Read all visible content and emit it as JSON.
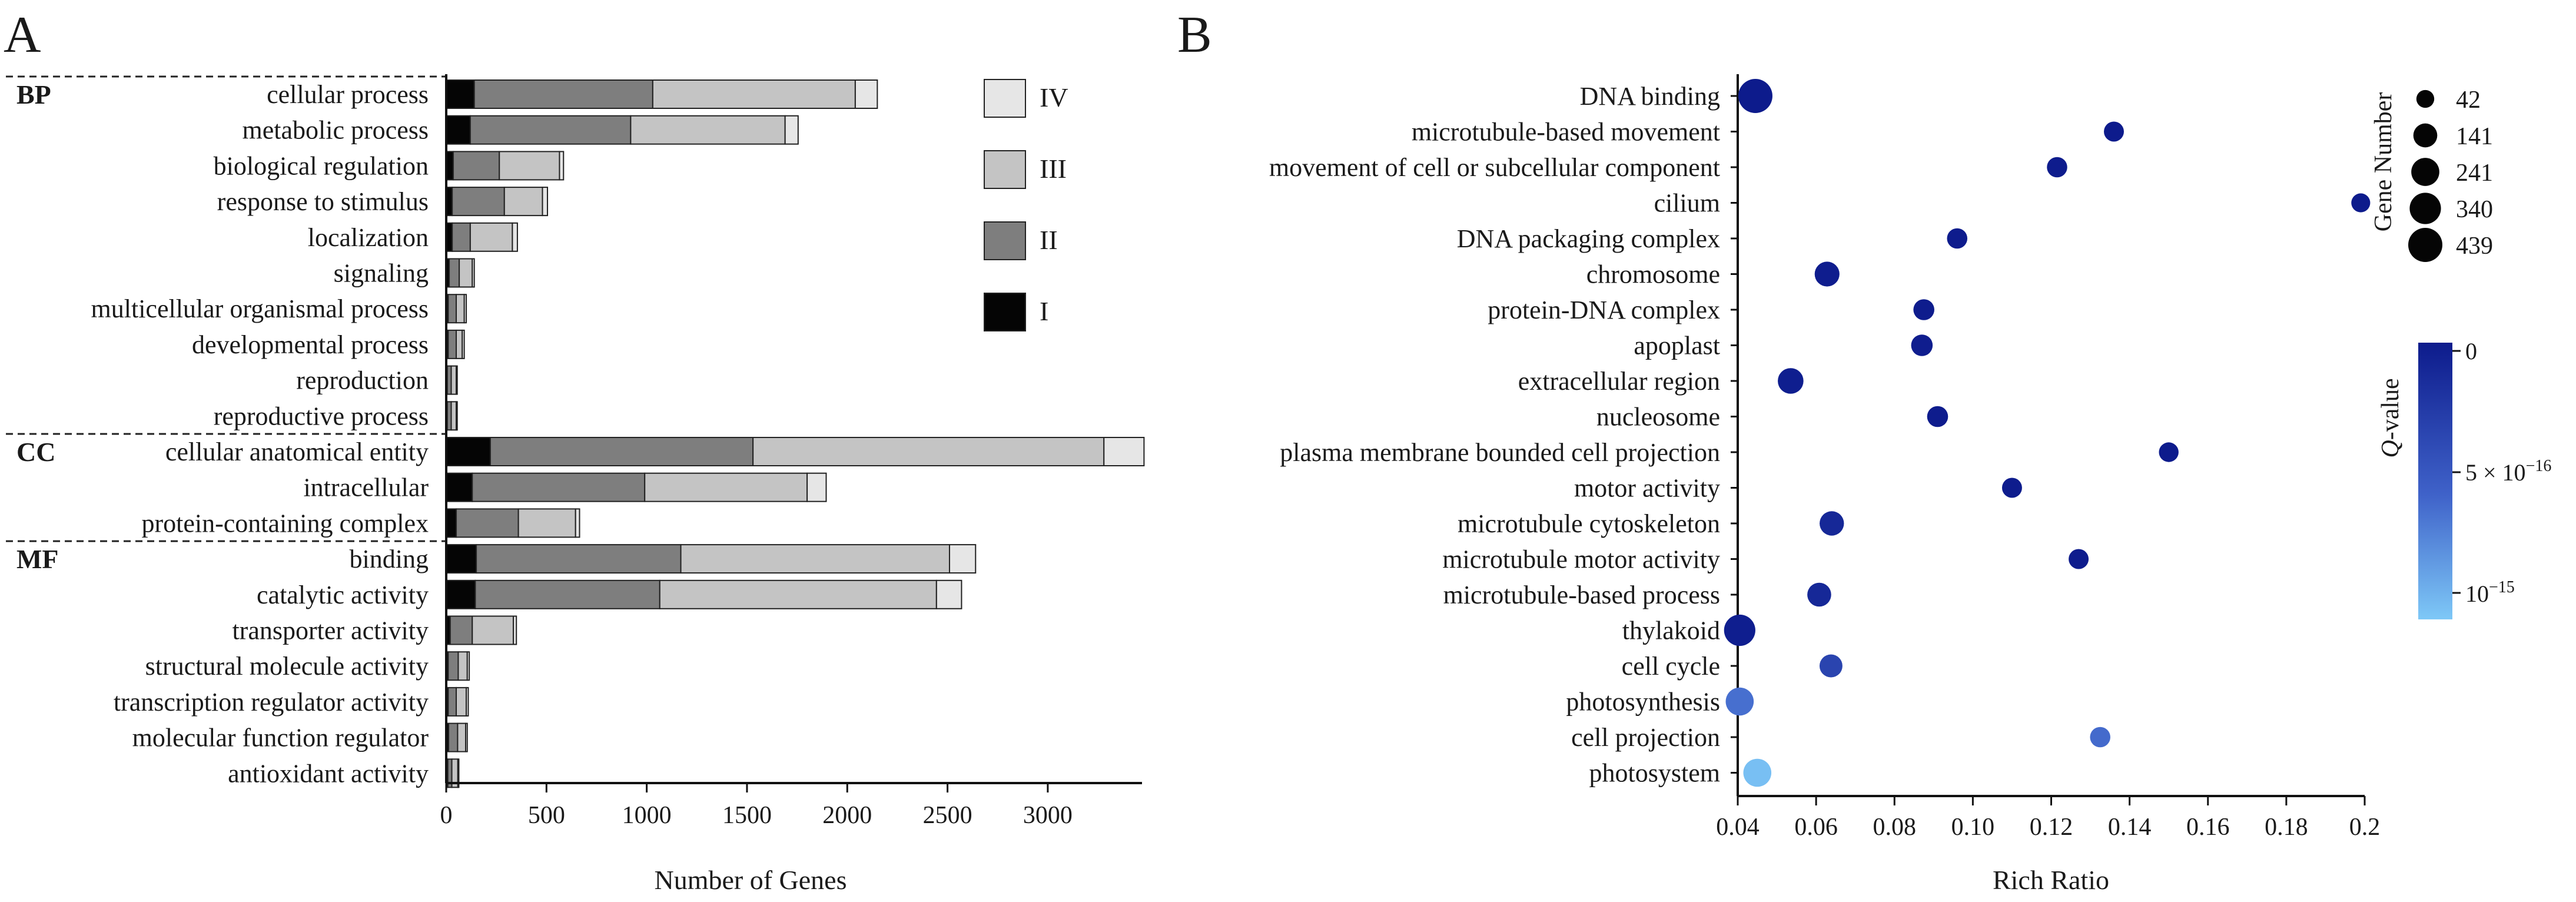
{
  "panel_a": {
    "label": "A",
    "xlabel": "Number of Genes",
    "xlim": [
      0,
      3470
    ],
    "xticks": [
      0,
      500,
      1000,
      1500,
      2000,
      2500,
      3000
    ],
    "legend": [
      {
        "label": "IV",
        "color": "#e6e6e6"
      },
      {
        "label": "III",
        "color": "#c4c4c4"
      },
      {
        "label": "II",
        "color": "#7e7e7e"
      },
      {
        "label": "I",
        "color": "#050505"
      }
    ],
    "groups": [
      {
        "label": "BP",
        "start": 0,
        "end": 9
      },
      {
        "label": "CC",
        "start": 10,
        "end": 12
      },
      {
        "label": "MF",
        "start": 13,
        "end": 19
      }
    ]
  },
  "panel_b": {
    "label": "B",
    "xlabel": "Rich Ratio",
    "xlim": [
      0.04,
      0.2
    ],
    "xticks": [
      "0.04",
      "0.06",
      "0.08",
      "0.10",
      "0.12",
      "0.14",
      "0.16",
      "0.18",
      "0.2"
    ],
    "size_legend_title": "Gene Number",
    "size_legend_values": [
      "42",
      "141",
      "241",
      "340",
      "439"
    ],
    "color_legend_title_italic": "Q",
    "color_legend_title_rest": "-value",
    "color_legend_ticks": [
      "0",
      "5 × 10",
      "−16",
      "10",
      "−15"
    ],
    "color_scale": [
      "#0d1b8c",
      "#7ec8f7"
    ]
  },
  "chart_data": [
    {
      "type": "bar",
      "stacked": true,
      "orientation": "horizontal",
      "title": "",
      "xlabel": "Number of Genes",
      "ylabel": "",
      "xlim": [
        0,
        3470
      ],
      "categories": [
        "cellular process",
        "metabolic process",
        "biological regulation",
        "response to stimulus",
        "localization",
        "signaling",
        "multicellular organismal process",
        "developmental process",
        "reproduction",
        "reproductive process",
        "cellular anatomical entity",
        "intracellular",
        "protein-containing complex",
        "binding",
        "catalytic activity",
        "transporter activity",
        "structural molecule activity",
        "transcription regulator activity",
        "molecular function regulator",
        "antioxidant activity"
      ],
      "groups": {
        "BP": [
          0,
          9
        ],
        "CC": [
          10,
          12
        ],
        "MF": [
          13,
          19
        ]
      },
      "series": [
        {
          "name": "I",
          "values": [
            140,
            120,
            35,
            30,
            30,
            15,
            10,
            10,
            5,
            5,
            220,
            130,
            50,
            150,
            145,
            20,
            10,
            10,
            12,
            8
          ]
        },
        {
          "name": "II",
          "values": [
            890,
            800,
            230,
            260,
            90,
            50,
            40,
            40,
            20,
            20,
            1310,
            860,
            310,
            1020,
            920,
            110,
            50,
            40,
            45,
            20
          ]
        },
        {
          "name": "III",
          "values": [
            1010,
            770,
            300,
            190,
            210,
            65,
            40,
            30,
            25,
            25,
            1750,
            810,
            285,
            1340,
            1380,
            205,
            45,
            50,
            40,
            30
          ]
        },
        {
          "name": "IV",
          "values": [
            110,
            65,
            20,
            25,
            25,
            10,
            10,
            10,
            5,
            5,
            200,
            95,
            20,
            130,
            125,
            15,
            10,
            10,
            8,
            5
          ]
        }
      ]
    },
    {
      "type": "scatter",
      "title": "",
      "xlabel": "Rich Ratio",
      "ylabel": "",
      "xlim": [
        0.04,
        0.2
      ],
      "size_metric": "Gene Number",
      "size_legend": [
        42,
        141,
        241,
        340,
        439
      ],
      "color_metric": "Q-value",
      "color_range": [
        0,
        1.2e-15
      ],
      "points": [
        {
          "term": "DNA binding",
          "rich_ratio": 0.0445,
          "gene_number": 439,
          "q_value": 0
        },
        {
          "term": "microtubule-based movement",
          "rich_ratio": 0.136,
          "gene_number": 70,
          "q_value": 0
        },
        {
          "term": "movement of cell or subcellular component",
          "rich_ratio": 0.1215,
          "gene_number": 75,
          "q_value": 1e-17
        },
        {
          "term": "cilium",
          "rich_ratio": 0.199,
          "gene_number": 55,
          "q_value": 0
        },
        {
          "term": "DNA packaging complex",
          "rich_ratio": 0.096,
          "gene_number": 75,
          "q_value": 1e-17
        },
        {
          "term": "chromosome",
          "rich_ratio": 0.0628,
          "gene_number": 160,
          "q_value": 2e-17
        },
        {
          "term": "protein-DNA complex",
          "rich_ratio": 0.0875,
          "gene_number": 85,
          "q_value": 1e-17
        },
        {
          "term": "apoplast",
          "rich_ratio": 0.087,
          "gene_number": 95,
          "q_value": 2e-17
        },
        {
          "term": "extracellular region",
          "rich_ratio": 0.0535,
          "gene_number": 180,
          "q_value": 3e-17
        },
        {
          "term": "nucleosome",
          "rich_ratio": 0.091,
          "gene_number": 85,
          "q_value": 1e-17
        },
        {
          "term": "plasma membrane bounded cell projection",
          "rich_ratio": 0.15,
          "gene_number": 65,
          "q_value": 0
        },
        {
          "term": "motor activity",
          "rich_ratio": 0.11,
          "gene_number": 70,
          "q_value": 1e-17
        },
        {
          "term": "microtubule cytoskeleton",
          "rich_ratio": 0.064,
          "gene_number": 150,
          "q_value": 1.2e-16
        },
        {
          "term": "microtubule motor activity",
          "rich_ratio": 0.127,
          "gene_number": 70,
          "q_value": 1e-17
        },
        {
          "term": "microtubule-based process",
          "rich_ratio": 0.0608,
          "gene_number": 140,
          "q_value": 1.2e-16
        },
        {
          "term": "thylakoid",
          "rich_ratio": 0.0405,
          "gene_number": 340,
          "q_value": 3e-17
        },
        {
          "term": "cell cycle",
          "rich_ratio": 0.0638,
          "gene_number": 120,
          "q_value": 3.8e-16
        },
        {
          "term": "photosynthesis",
          "rich_ratio": 0.0405,
          "gene_number": 240,
          "q_value": 7.3e-16
        },
        {
          "term": "cell projection",
          "rich_ratio": 0.1325,
          "gene_number": 75,
          "q_value": 7e-16
        },
        {
          "term": "photosystem",
          "rich_ratio": 0.045,
          "gene_number": 240,
          "q_value": 1.15e-15
        }
      ]
    }
  ]
}
